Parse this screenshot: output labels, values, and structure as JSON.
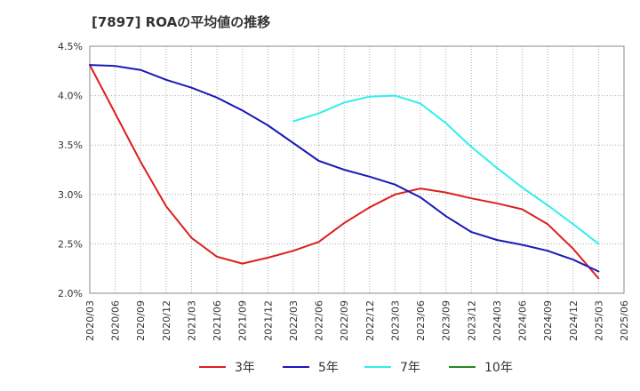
{
  "chart_data": {
    "type": "line",
    "title": "[7897]  ROAの平均値の推移",
    "xlabel": "",
    "ylabel": "",
    "ylim": [
      2.0,
      4.5
    ],
    "yticks": [
      "2.0%",
      "2.5%",
      "3.0%",
      "3.5%",
      "4.0%",
      "4.5%"
    ],
    "ytick_values": [
      2.0,
      2.5,
      3.0,
      3.5,
      4.0,
      4.5
    ],
    "x": [
      "2020/03",
      "2020/06",
      "2020/09",
      "2020/12",
      "2021/03",
      "2021/06",
      "2021/09",
      "2021/12",
      "2022/03",
      "2022/06",
      "2022/09",
      "2022/12",
      "2023/03",
      "2023/06",
      "2023/09",
      "2023/12",
      "2024/03",
      "2024/06",
      "2024/09",
      "2024/12",
      "2025/03",
      "2025/06"
    ],
    "grid": true,
    "legend_position": "bottom",
    "series": [
      {
        "name": "3年",
        "color": "#dd1f1f",
        "values": [
          4.31,
          3.82,
          3.33,
          2.88,
          2.56,
          2.37,
          2.3,
          2.36,
          2.43,
          2.52,
          2.71,
          2.87,
          3.0,
          3.06,
          3.02,
          2.96,
          2.91,
          2.85,
          2.7,
          2.45,
          2.15,
          null
        ]
      },
      {
        "name": "5年",
        "color": "#1a1ab8",
        "values": [
          4.31,
          4.3,
          4.26,
          4.16,
          4.08,
          3.98,
          3.85,
          3.7,
          3.52,
          3.34,
          3.25,
          3.18,
          3.1,
          2.97,
          2.78,
          2.62,
          2.54,
          2.49,
          2.43,
          2.34,
          2.22,
          null
        ]
      },
      {
        "name": "7年",
        "color": "#33eeee",
        "values": [
          null,
          null,
          null,
          null,
          null,
          null,
          null,
          null,
          3.74,
          3.82,
          3.93,
          3.99,
          4.0,
          3.92,
          3.72,
          3.48,
          3.27,
          3.07,
          2.89,
          2.7,
          2.5,
          null
        ]
      },
      {
        "name": "10年",
        "color": "#228B22",
        "values": [
          null,
          null,
          null,
          null,
          null,
          null,
          null,
          null,
          null,
          null,
          null,
          null,
          null,
          null,
          null,
          null,
          null,
          null,
          null,
          null,
          null,
          null
        ]
      }
    ]
  }
}
